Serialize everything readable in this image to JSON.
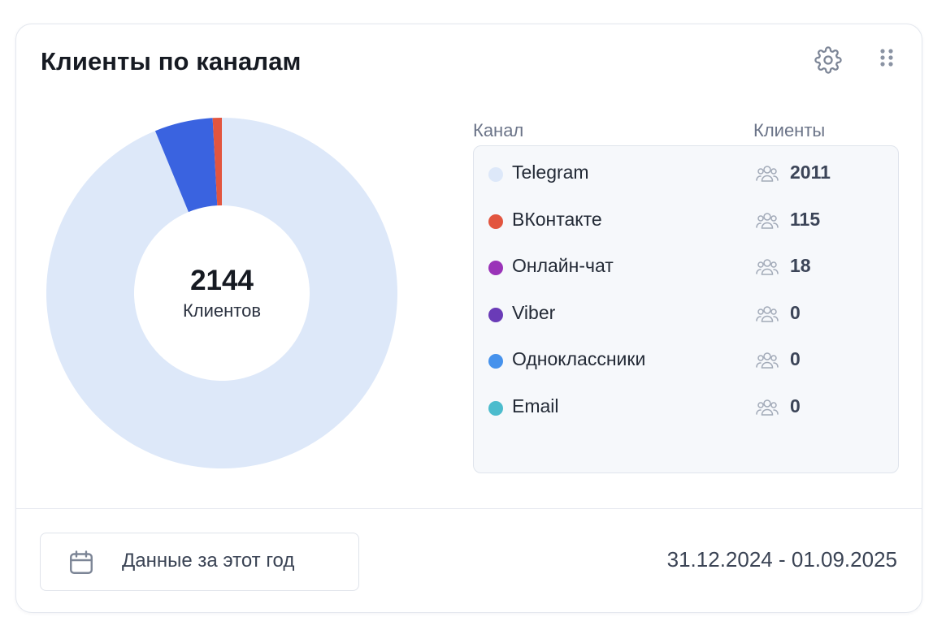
{
  "widget": {
    "title": "Клиенты по каналам",
    "settings_icon": "gear-icon",
    "drag_icon": "drag-handle-icon"
  },
  "donut": {
    "total": "2144",
    "caption": "Клиентов"
  },
  "legend": {
    "channel_header": "Канал",
    "clients_header": "Клиенты",
    "user_icon": "users-icon",
    "rows": [
      {
        "name": "Telegram",
        "count": "2011",
        "color": "#dde8f9"
      },
      {
        "name": "ВКонтакте",
        "count": "115",
        "color": "#e2553f"
      },
      {
        "name": "Онлайн-чат",
        "count": "18",
        "color": "#9a33b8"
      },
      {
        "name": "Viber",
        "count": "0",
        "color": "#6a3bb7"
      },
      {
        "name": "Одноклассники",
        "count": "0",
        "color": "#4692ec"
      },
      {
        "name": "Email",
        "count": "0",
        "color": "#4cbccd"
      }
    ]
  },
  "footer": {
    "period_label": "Данные за этот год",
    "period_icon": "calendar-icon",
    "date_range": "31.12.2024 - 01.09.2025"
  },
  "chart_data": {
    "type": "pie",
    "categories": [
      "Telegram",
      "ВКонтакте",
      "Онлайн-чат",
      "Viber",
      "Одноклассники",
      "Email"
    ],
    "values": [
      2011,
      115,
      18,
      0,
      0,
      0
    ],
    "colors": [
      "#dde8f9",
      "#e2553f",
      "#9a33b8",
      "#6a3bb7",
      "#4692ec",
      "#4cbccd"
    ],
    "title": "",
    "variant": "donut",
    "slice_fill_colors": [
      "#dde8f9",
      "#3a63e0",
      "#e2553f"
    ],
    "note_center_total": 2144
  }
}
